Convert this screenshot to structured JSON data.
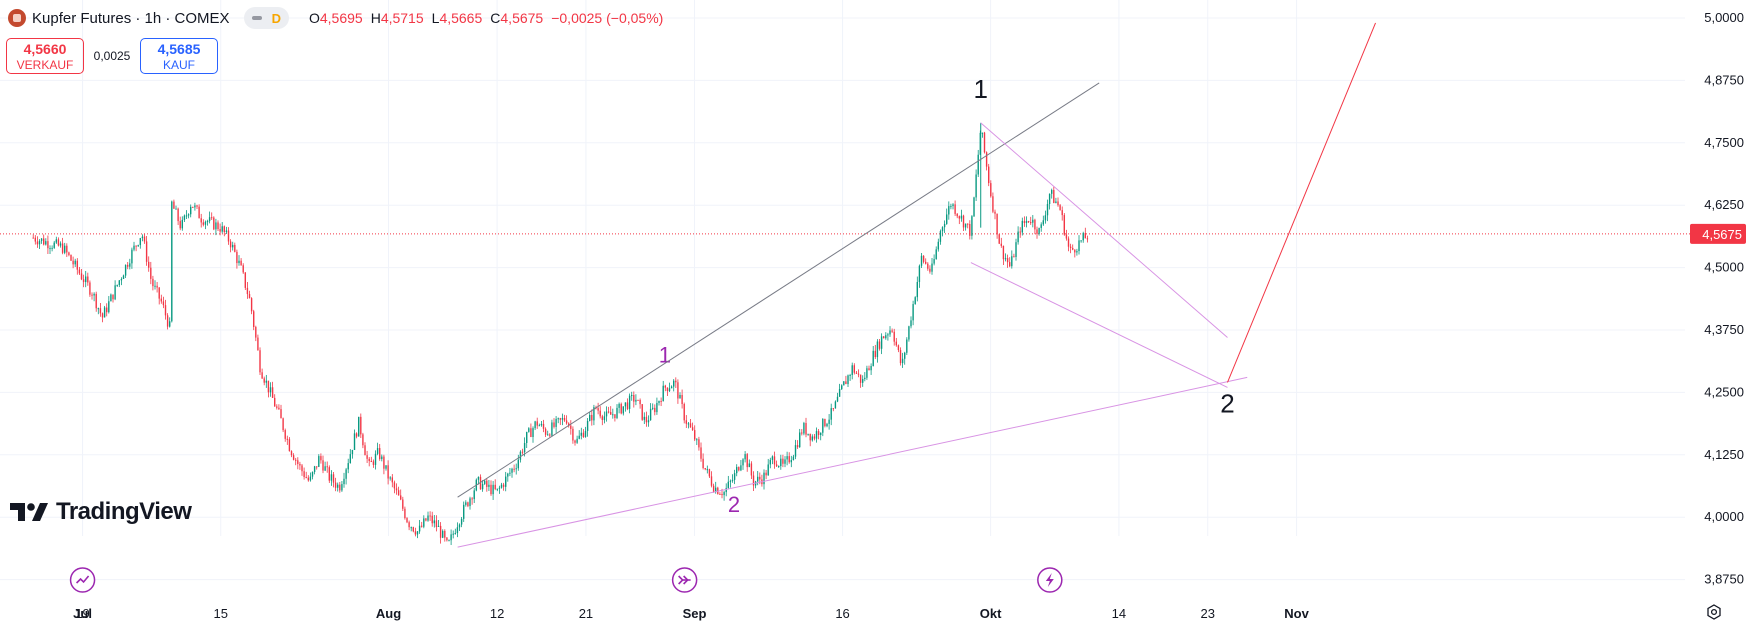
{
  "header": {
    "symbol": "Kupfer Futures · 1h · COMEX",
    "toggle_label": "D",
    "ohlc": [
      {
        "key": "O",
        "value": "4,5695"
      },
      {
        "key": "H",
        "value": "4,5715"
      },
      {
        "key": "L",
        "value": "4,5665"
      },
      {
        "key": "C",
        "value": "4,5675"
      },
      {
        "key": "",
        "value": "−0,0025 (−0,05%)"
      }
    ]
  },
  "trade": {
    "sell_price": "4,5660",
    "sell_label": "VERKAUF",
    "spread": "0,0025",
    "buy_price": "4,5685",
    "buy_label": "KAUF"
  },
  "logo_text": "TradingView",
  "colors": {
    "up": "#089981",
    "down": "#f23645",
    "wave_purple": "#9c27b0",
    "pattern_line": "#d893e4",
    "channel_line": "#787b86",
    "projection": "#f23645",
    "price_line": "#f23645"
  },
  "chart_data": {
    "type": "candlestick",
    "instrument": "Kupfer Futures",
    "interval": "1h",
    "exchange": "COMEX",
    "x_axis_labels": [
      "19",
      "Jul",
      "15",
      "Aug",
      "12",
      "21",
      "Sep",
      "16",
      "Okt",
      "14",
      "23",
      "Nov"
    ],
    "y_axis_labels": [
      "5,0000",
      "4,8750",
      "4,7500",
      "4,6250",
      "4,5000",
      "4,3750",
      "4,2500",
      "4,1250",
      "4,0000",
      "3,8750"
    ],
    "ylim": [
      3.85,
      5.03
    ],
    "last_price": {
      "value": 4.5675,
      "label": "4,5675"
    },
    "price_path": [
      {
        "x": "Jun 14",
        "y": 4.56
      },
      {
        "x": "Jun 17",
        "y": 4.54
      },
      {
        "x": "Jun 19",
        "y": 4.48
      },
      {
        "x": "Jun 20",
        "y": 4.45
      },
      {
        "x": "Jun 21",
        "y": 4.4
      },
      {
        "x": "Jun 24",
        "y": 4.53
      },
      {
        "x": "Jun 25",
        "y": 4.57
      },
      {
        "x": "Jun 26",
        "y": 4.47
      },
      {
        "x": "Jun 27",
        "y": 4.43
      },
      {
        "x": "Jun 28",
        "y": 4.37
      },
      {
        "x": "Jul 1",
        "y": 4.35
      },
      {
        "x": "Jul 2",
        "y": 4.39
      },
      {
        "x": "Jul 3",
        "y": 4.42
      },
      {
        "x": "Jul 4",
        "y": 4.46
      },
      {
        "x": "Jul 5",
        "y": 4.55
      },
      {
        "x": "Jul 6",
        "y": 4.62
      },
      {
        "x": "Jul 8",
        "y": 4.67
      },
      {
        "x": "Jul 9",
        "y": 4.64
      },
      {
        "x": "Jul 10",
        "y": 4.63
      },
      {
        "x": "Jul 11",
        "y": 4.58
      },
      {
        "x": "Jul 12",
        "y": 4.63
      },
      {
        "x": "Jul 13",
        "y": 4.6
      },
      {
        "x": "Jul 15",
        "y": 4.58
      },
      {
        "x": "Jul 16",
        "y": 4.55
      },
      {
        "x": "Jul 17",
        "y": 4.5
      },
      {
        "x": "Jul 18",
        "y": 4.43
      },
      {
        "x": "Jul 19",
        "y": 4.3
      },
      {
        "x": "Jul 20",
        "y": 4.25
      },
      {
        "x": "Jul 21",
        "y": 4.2
      },
      {
        "x": "Jul 22",
        "y": 4.14
      },
      {
        "x": "Jul 23",
        "y": 4.1
      },
      {
        "x": "Jul 24",
        "y": 4.07
      },
      {
        "x": "Jul 25",
        "y": 4.12
      },
      {
        "x": "Jul 26",
        "y": 4.08
      },
      {
        "x": "Jul 27",
        "y": 4.06
      },
      {
        "x": "Jul 28",
        "y": 4.12
      },
      {
        "x": "Jul 29",
        "y": 4.19
      },
      {
        "x": "Jul 30",
        "y": 4.1
      },
      {
        "x": "Jul 31",
        "y": 4.13
      },
      {
        "x": "Aug 1",
        "y": 4.08
      },
      {
        "x": "Aug 2",
        "y": 4.04
      },
      {
        "x": "Aug 3",
        "y": 3.99
      },
      {
        "x": "Aug 4",
        "y": 3.97
      },
      {
        "x": "Aug 5",
        "y": 4.0
      },
      {
        "x": "Aug 6",
        "y": 3.98
      },
      {
        "x": "Aug 7",
        "y": 3.94
      },
      {
        "x": "Aug 8",
        "y": 3.99
      },
      {
        "x": "Aug 9",
        "y": 4.03
      },
      {
        "x": "Aug 10",
        "y": 4.07
      },
      {
        "x": "Aug 12",
        "y": 4.05
      },
      {
        "x": "Aug 13",
        "y": 4.08
      },
      {
        "x": "Aug 14",
        "y": 4.11
      },
      {
        "x": "Aug 15",
        "y": 4.16
      },
      {
        "x": "Aug 16",
        "y": 4.19
      },
      {
        "x": "Aug 17",
        "y": 4.17
      },
      {
        "x": "Aug 19",
        "y": 4.2
      },
      {
        "x": "Aug 20",
        "y": 4.15
      },
      {
        "x": "Aug 21",
        "y": 4.18
      },
      {
        "x": "Aug 22",
        "y": 4.22
      },
      {
        "x": "Aug 23",
        "y": 4.2
      },
      {
        "x": "Aug 24",
        "y": 4.21
      },
      {
        "x": "Aug 26",
        "y": 4.24
      },
      {
        "x": "Aug 27",
        "y": 4.19
      },
      {
        "x": "Aug 28",
        "y": 4.22
      },
      {
        "x": "Aug 29",
        "y": 4.26
      },
      {
        "x": "Aug 30",
        "y": 4.27
      },
      {
        "x": "Aug 31",
        "y": 4.2
      },
      {
        "x": "Sep 1",
        "y": 4.16
      },
      {
        "x": "Sep 2",
        "y": 4.1
      },
      {
        "x": "Sep 3",
        "y": 4.06
      },
      {
        "x": "Sep 4",
        "y": 4.05
      },
      {
        "x": "Sep 5",
        "y": 4.08
      },
      {
        "x": "Sep 6",
        "y": 4.13
      },
      {
        "x": "Sep 7",
        "y": 4.07
      },
      {
        "x": "Sep 8",
        "y": 4.08
      },
      {
        "x": "Sep 9",
        "y": 4.12
      },
      {
        "x": "Sep 10",
        "y": 4.1
      },
      {
        "x": "Sep 11",
        "y": 4.13
      },
      {
        "x": "Sep 12",
        "y": 4.18
      },
      {
        "x": "Sep 13",
        "y": 4.16
      },
      {
        "x": "Sep 15",
        "y": 4.21
      },
      {
        "x": "Sep 16",
        "y": 4.26
      },
      {
        "x": "Sep 17",
        "y": 4.3
      },
      {
        "x": "Sep 18",
        "y": 4.27
      },
      {
        "x": "Sep 19",
        "y": 4.32
      },
      {
        "x": "Sep 20",
        "y": 4.36
      },
      {
        "x": "Sep 21",
        "y": 4.38
      },
      {
        "x": "Sep 22",
        "y": 4.3
      },
      {
        "x": "Sep 23",
        "y": 4.41
      },
      {
        "x": "Sep 24",
        "y": 4.52
      },
      {
        "x": "Sep 25",
        "y": 4.49
      },
      {
        "x": "Sep 26",
        "y": 4.58
      },
      {
        "x": "Sep 27",
        "y": 4.63
      },
      {
        "x": "Sep 28",
        "y": 4.6
      },
      {
        "x": "Sep 29",
        "y": 4.57
      },
      {
        "x": "Sep 30",
        "y": 4.78
      },
      {
        "x": "Oct 1",
        "y": 4.65
      },
      {
        "x": "Oct 2",
        "y": 4.54
      },
      {
        "x": "Oct 3",
        "y": 4.5
      },
      {
        "x": "Oct 4",
        "y": 4.58
      },
      {
        "x": "Oct 5",
        "y": 4.6
      },
      {
        "x": "Oct 6",
        "y": 4.57
      },
      {
        "x": "Oct 7",
        "y": 4.65
      },
      {
        "x": "Oct 8",
        "y": 4.62
      },
      {
        "x": "Oct 9",
        "y": 4.53
      },
      {
        "x": "Oct 10",
        "y": 4.55
      },
      {
        "x": "Oct 11",
        "y": 4.5675
      }
    ],
    "annotations": [
      {
        "type": "label",
        "text": "1",
        "x": "Aug 29",
        "y": 4.31,
        "color": "purple"
      },
      {
        "type": "label",
        "text": "2",
        "x": "Sep 5",
        "y": 4.01,
        "color": "purple"
      },
      {
        "type": "label",
        "text": "1",
        "x": "Sep 30",
        "y": 4.84,
        "color": "black"
      },
      {
        "type": "label",
        "text": "2",
        "x": "Oct 25",
        "y": 4.21,
        "color": "black"
      },
      {
        "type": "line",
        "name": "channel",
        "from": {
          "x": "Aug 8",
          "y": 4.04
        },
        "to": {
          "x": "Oct 12",
          "y": 4.87
        },
        "color": "grey"
      },
      {
        "type": "line",
        "name": "lower-trendline",
        "from": {
          "x": "Aug 8",
          "y": 3.94
        },
        "to": {
          "x": "Oct 27",
          "y": 4.28
        },
        "color": "violet"
      },
      {
        "type": "line",
        "name": "upper-triangle",
        "from": {
          "x": "Sep 30",
          "y": 4.79
        },
        "to": {
          "x": "Oct 25",
          "y": 4.36
        },
        "color": "violet"
      },
      {
        "type": "line",
        "name": "lower-triangle",
        "from": {
          "x": "Sep 29",
          "y": 4.51
        },
        "to": {
          "x": "Oct 25",
          "y": 4.26
        },
        "color": "violet"
      },
      {
        "type": "line",
        "name": "projection",
        "from": {
          "x": "Oct 25",
          "y": 4.27
        },
        "to": {
          "x": "Nov 9",
          "y": 4.99
        },
        "color": "red"
      }
    ],
    "icons": [
      "trending-icon",
      "arrow-forward-icon",
      "flash-icon"
    ],
    "grid": true
  }
}
